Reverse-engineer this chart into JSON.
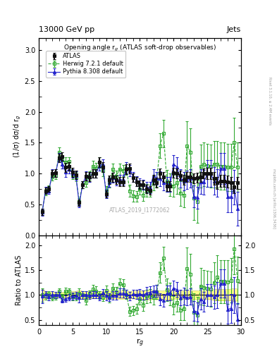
{
  "title_left": "13000 GeV pp",
  "title_right": "Jets",
  "plot_title": "Opening angle r$_g$ (ATLAS soft-drop observables)",
  "watermark": "ATLAS_2019_I1772062",
  "ylabel_main": "(1/σ) dσ/d r$_g$",
  "ylabel_ratio": "Ratio to ATLAS",
  "xlabel": "r$_g$",
  "right_label": "Rivet 3.1.10, ≥ 2.4M events",
  "right_label2": "mcplots.cern.ch [arXiv:1306.3436]",
  "xlim": [
    0,
    30
  ],
  "ylim_main": [
    0,
    3.2
  ],
  "ylim_ratio": [
    0.4,
    2.2
  ],
  "yticks_main": [
    0,
    0.5,
    1.0,
    1.5,
    2.0,
    2.5,
    3.0
  ],
  "yticks_ratio": [
    0.5,
    1.0,
    1.5,
    2.0
  ],
  "xticks": [
    0,
    5,
    10,
    15,
    20,
    25,
    30
  ],
  "atlas_x": [
    0.5,
    1.0,
    1.5,
    2.0,
    2.5,
    3.0,
    3.5,
    4.0,
    4.5,
    5.0,
    5.5,
    6.0,
    6.5,
    7.0,
    7.5,
    8.0,
    8.5,
    9.0,
    9.5,
    10.0,
    10.5,
    11.0,
    11.5,
    12.0,
    12.5,
    13.0,
    13.5,
    14.0,
    14.5,
    15.0,
    15.5,
    16.0,
    16.5,
    17.0,
    17.5,
    18.0,
    18.5,
    19.0,
    19.5,
    20.0,
    20.5,
    21.0,
    21.5,
    22.0,
    22.5,
    23.0,
    23.5,
    24.0,
    24.5,
    25.0,
    25.5,
    26.0,
    26.5,
    27.0,
    27.5,
    28.0,
    28.5,
    29.0,
    29.5
  ],
  "atlas_y": [
    0.38,
    0.72,
    0.75,
    1.0,
    1.01,
    1.25,
    1.28,
    1.1,
    1.12,
    1.02,
    0.98,
    0.53,
    0.82,
    0.96,
    0.95,
    1.0,
    1.0,
    1.18,
    1.1,
    0.67,
    0.9,
    0.94,
    0.9,
    0.87,
    0.87,
    1.07,
    1.08,
    0.93,
    0.87,
    0.82,
    0.82,
    0.75,
    0.73,
    0.9,
    0.85,
    1.0,
    0.95,
    0.8,
    0.8,
    1.01,
    1.0,
    0.97,
    0.9,
    0.95,
    0.95,
    0.92,
    0.93,
    0.95,
    1.0,
    1.0,
    1.0,
    0.92,
    0.85,
    0.88,
    0.88,
    0.87,
    0.85,
    0.78,
    0.85
  ],
  "atlas_yerr": [
    0.05,
    0.05,
    0.05,
    0.06,
    0.06,
    0.07,
    0.07,
    0.07,
    0.07,
    0.07,
    0.07,
    0.05,
    0.06,
    0.07,
    0.07,
    0.07,
    0.07,
    0.08,
    0.08,
    0.06,
    0.07,
    0.07,
    0.07,
    0.07,
    0.07,
    0.08,
    0.08,
    0.07,
    0.07,
    0.07,
    0.07,
    0.07,
    0.07,
    0.08,
    0.08,
    0.08,
    0.08,
    0.08,
    0.08,
    0.08,
    0.08,
    0.08,
    0.08,
    0.08,
    0.08,
    0.08,
    0.08,
    0.08,
    0.08,
    0.09,
    0.09,
    0.1,
    0.1,
    0.1,
    0.1,
    0.1,
    0.1,
    0.1,
    0.1
  ],
  "herwig_x": [
    0.5,
    1.0,
    1.5,
    2.0,
    2.5,
    3.0,
    3.5,
    4.0,
    4.5,
    5.0,
    5.5,
    6.0,
    6.5,
    7.0,
    7.5,
    8.0,
    8.5,
    9.0,
    9.5,
    10.0,
    10.5,
    11.0,
    11.5,
    12.0,
    12.5,
    13.0,
    13.5,
    14.0,
    14.5,
    15.0,
    15.5,
    16.0,
    16.5,
    17.0,
    17.5,
    18.0,
    18.5,
    19.0,
    19.5,
    20.0,
    20.5,
    21.0,
    21.5,
    22.0,
    22.5,
    23.0,
    23.5,
    24.0,
    24.5,
    25.0,
    25.5,
    26.0,
    26.5,
    27.0,
    27.5,
    28.0,
    28.5,
    29.0,
    29.5
  ],
  "herwig_y": [
    0.38,
    0.7,
    0.76,
    0.95,
    0.97,
    1.34,
    1.22,
    1.19,
    1.2,
    0.98,
    0.95,
    0.55,
    0.82,
    0.85,
    0.97,
    1.12,
    1.08,
    1.18,
    1.05,
    0.73,
    0.85,
    1.07,
    0.96,
    1.07,
    1.05,
    1.08,
    0.72,
    0.64,
    0.63,
    0.75,
    0.65,
    0.73,
    0.72,
    0.85,
    0.9,
    1.45,
    1.65,
    0.88,
    0.82,
    0.8,
    0.85,
    0.68,
    0.65,
    1.45,
    1.35,
    0.6,
    0.55,
    1.12,
    1.15,
    1.13,
    1.12,
    1.15,
    1.15,
    1.12,
    1.12,
    1.1,
    1.1,
    1.5,
    1.1
  ],
  "herwig_yerr": [
    0.05,
    0.05,
    0.05,
    0.06,
    0.06,
    0.08,
    0.08,
    0.07,
    0.07,
    0.07,
    0.07,
    0.05,
    0.06,
    0.07,
    0.07,
    0.09,
    0.09,
    0.09,
    0.09,
    0.07,
    0.08,
    0.09,
    0.09,
    0.09,
    0.09,
    0.1,
    0.1,
    0.09,
    0.09,
    0.09,
    0.09,
    0.1,
    0.1,
    0.12,
    0.12,
    0.2,
    0.22,
    0.18,
    0.18,
    0.18,
    0.18,
    0.2,
    0.2,
    0.4,
    0.38,
    0.35,
    0.35,
    0.35,
    0.35,
    0.35,
    0.35,
    0.38,
    0.38,
    0.38,
    0.38,
    0.38,
    0.38,
    0.4,
    0.4
  ],
  "pythia_x": [
    0.5,
    1.0,
    1.5,
    2.0,
    2.5,
    3.0,
    3.5,
    4.0,
    4.5,
    5.0,
    5.5,
    6.0,
    6.5,
    7.0,
    7.5,
    8.0,
    8.5,
    9.0,
    9.5,
    10.0,
    10.5,
    11.0,
    11.5,
    12.0,
    12.5,
    13.0,
    13.5,
    14.0,
    14.5,
    15.0,
    15.5,
    16.0,
    16.5,
    17.0,
    17.5,
    18.0,
    18.5,
    19.0,
    19.5,
    20.0,
    20.5,
    21.0,
    21.5,
    22.0,
    22.5,
    23.0,
    23.5,
    24.0,
    24.5,
    25.0,
    25.5,
    26.0,
    26.5,
    27.0,
    27.5,
    28.0,
    28.5,
    29.0,
    29.5
  ],
  "pythia_y": [
    0.37,
    0.73,
    0.72,
    1.01,
    1.01,
    1.26,
    1.15,
    1.02,
    1.07,
    1.0,
    0.97,
    0.5,
    0.82,
    0.97,
    0.94,
    1.0,
    1.0,
    1.13,
    1.15,
    0.66,
    0.86,
    0.93,
    0.89,
    0.9,
    0.9,
    1.09,
    1.05,
    0.95,
    0.88,
    0.84,
    0.82,
    0.78,
    0.77,
    0.97,
    0.92,
    0.92,
    0.85,
    0.83,
    0.83,
    1.15,
    1.11,
    0.92,
    0.88,
    0.9,
    0.92,
    0.63,
    0.61,
    0.87,
    0.86,
    1.0,
    1.0,
    0.88,
    0.85,
    1.08,
    1.08,
    0.62,
    0.62,
    0.78,
    0.43
  ],
  "pythia_yerr": [
    0.05,
    0.05,
    0.05,
    0.06,
    0.06,
    0.07,
    0.07,
    0.07,
    0.07,
    0.07,
    0.07,
    0.05,
    0.06,
    0.07,
    0.07,
    0.07,
    0.07,
    0.08,
    0.08,
    0.06,
    0.07,
    0.08,
    0.08,
    0.08,
    0.08,
    0.09,
    0.09,
    0.08,
    0.08,
    0.08,
    0.08,
    0.09,
    0.09,
    0.1,
    0.1,
    0.12,
    0.12,
    0.12,
    0.12,
    0.15,
    0.15,
    0.15,
    0.15,
    0.15,
    0.15,
    0.18,
    0.18,
    0.2,
    0.2,
    0.22,
    0.22,
    0.22,
    0.22,
    0.25,
    0.25,
    0.25,
    0.25,
    0.28,
    0.28
  ],
  "atlas_band_color": "#ffff88",
  "atlas_band_edge": "#cccc00",
  "herwig_color": "#33aa33",
  "pythia_color": "#2222cc",
  "atlas_color": "#111111",
  "ref_line_color": "#000000"
}
